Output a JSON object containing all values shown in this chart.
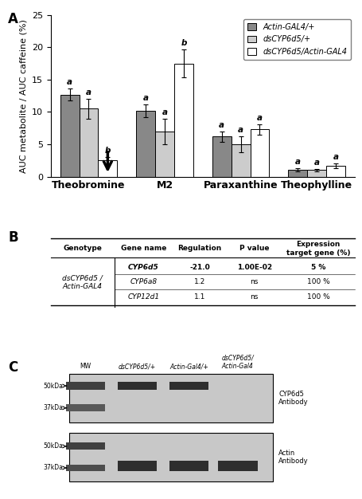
{
  "bar_groups": [
    "Theobromine",
    "M2",
    "Paraxanthine",
    "Theophylline"
  ],
  "series": [
    {
      "label": "Actin-GAL4/+",
      "color": "#888888",
      "values": [
        12.7,
        10.2,
        6.2,
        1.1
      ],
      "errors": [
        0.9,
        1.0,
        0.8,
        0.25
      ]
    },
    {
      "label": "dsCYP6d5/+",
      "color": "#cccccc",
      "values": [
        10.5,
        7.0,
        5.0,
        1.0
      ],
      "errors": [
        1.5,
        2.0,
        1.2,
        0.2
      ]
    },
    {
      "label": "dsCYP6d5/Actin-GAL4",
      "color": "#ffffff",
      "values": [
        2.5,
        17.5,
        7.3,
        1.7
      ],
      "errors": [
        0.5,
        2.2,
        0.8,
        0.35
      ]
    }
  ],
  "ylabel": "AUC metabolite / AUC caffeine (%)",
  "ylim": [
    0,
    25
  ],
  "yticks": [
    0,
    5,
    10,
    15,
    20,
    25
  ],
  "bar_width": 0.25,
  "letter_labels": {
    "Theobromine": [
      "a",
      "a",
      "b"
    ],
    "M2": [
      "a",
      "a",
      "b"
    ],
    "Paraxanthine": [
      "a",
      "a",
      "a"
    ],
    "Theophylline": [
      "a",
      "a",
      "a"
    ]
  },
  "table_headers": [
    "Genotype",
    "Gene name",
    "Regulation",
    "P value",
    "Expression\ntarget gene (%)"
  ],
  "table_genotype": "dsCYP6d5 /\nActin-GAL4",
  "table_rows": [
    [
      "CYP6d5",
      "-21.0",
      "1.00E-02",
      "5 %"
    ],
    [
      "CYP6a8",
      "1.2",
      "ns",
      "100 %"
    ],
    [
      "CYP12d1",
      "1.1",
      "ns",
      "100 %"
    ]
  ],
  "table_bold_row": 0,
  "wb_col_labels": [
    "MW",
    "dsCYP6d5/+",
    "Actin-Gal4/+",
    "dsCYP6d5/\nActin-Gal4"
  ],
  "wb_cyp6d5_label": "CYP6d5\nAntibody",
  "wb_actin_label": "Actin\nAntibody",
  "kda_top": [
    "50kDa",
    "37kDa"
  ],
  "kda_bot": [
    "50kDa",
    "37kDa"
  ]
}
